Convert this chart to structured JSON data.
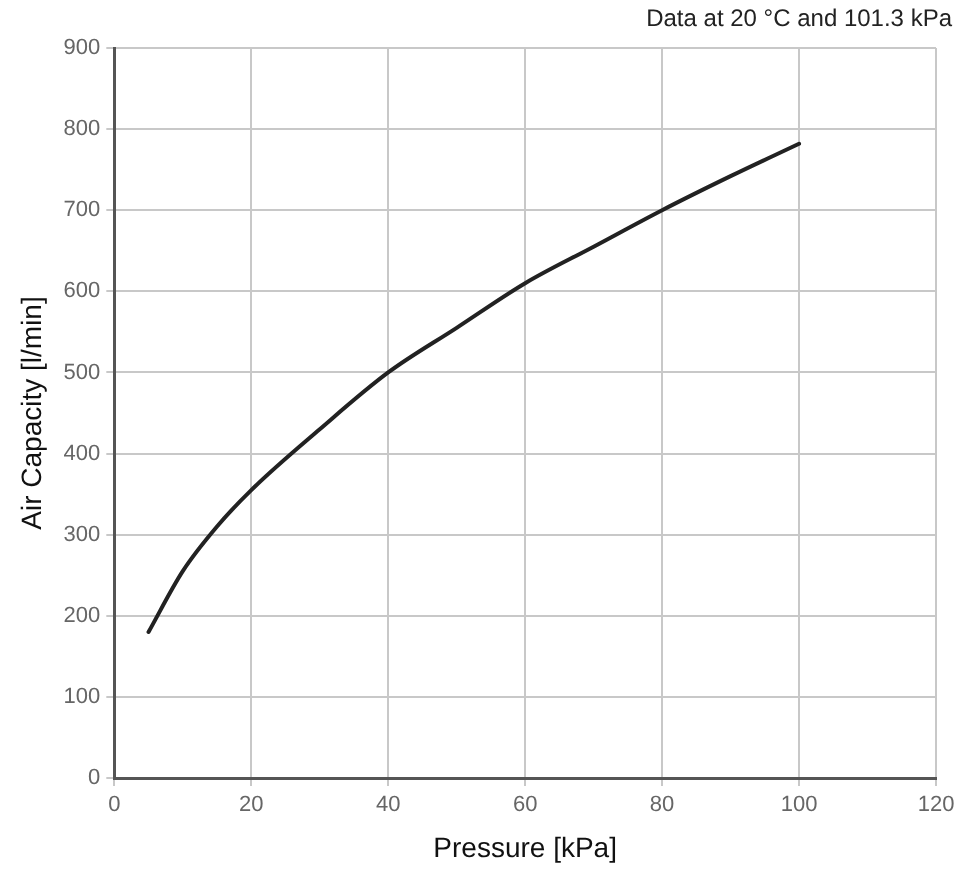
{
  "chart_data": {
    "type": "line",
    "xlabel": "Pressure [kPa]",
    "ylabel": "Air Capacity [l/min]",
    "annotations": [
      "Data at 20 °C and 101.3 kPa"
    ],
    "x": [
      5,
      10,
      15,
      20,
      30,
      40,
      50,
      60,
      70,
      80,
      90,
      100
    ],
    "series": [
      {
        "color": "#222222",
        "values": [
          180,
          255,
          310,
          355,
          430,
          500,
          555,
          610,
          655,
          700,
          742,
          782
        ]
      }
    ],
    "xlim": [
      0,
      120
    ],
    "xticks": [
      0,
      20,
      40,
      60,
      80,
      100,
      120
    ],
    "ylim": [
      0,
      900
    ],
    "yticks": [
      0,
      100,
      200,
      300,
      400,
      500,
      600,
      700,
      800,
      900
    ],
    "grid": true,
    "legend": false,
    "marker": "none",
    "line_style": "solid"
  }
}
